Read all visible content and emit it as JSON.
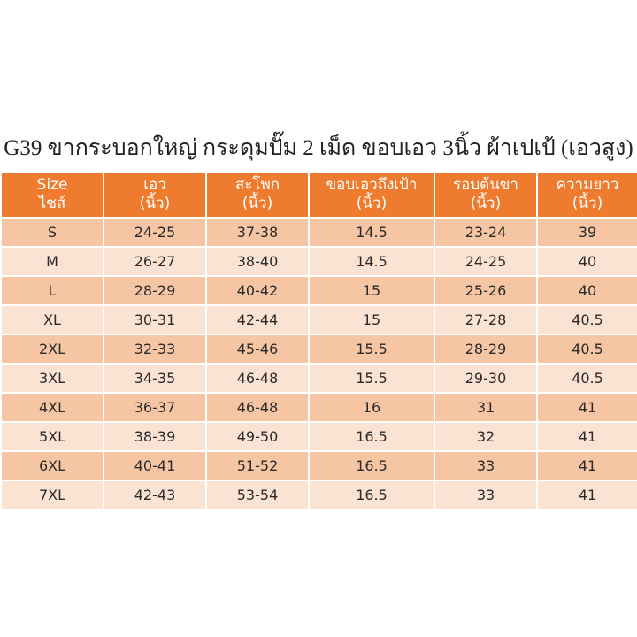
{
  "title": "G39 ขากระบอกใหญ่ กระดุมปั๊ม 2 เม็ด ขอบเอว 3นิ้ว ผ้าเปเป้ (เอวสูง)",
  "colors": {
    "header_bg": "#ef7c2e",
    "row_dark": "#f6c6a4",
    "row_light": "#fbe3d3"
  },
  "headers": [
    {
      "line1": "Size",
      "line2": "ไซส์"
    },
    {
      "line1": "เอว",
      "line2": "(นิ้ว)"
    },
    {
      "line1": "สะโพก",
      "line2": "(นิ้ว)"
    },
    {
      "line1": "ขอบเอวถึงเป้า",
      "line2": "(นิ้ว)"
    },
    {
      "line1": "รอบต้นขา",
      "line2": "(นิ้ว)"
    },
    {
      "line1": "ความยาว",
      "line2": "(นิ้ว)"
    }
  ],
  "rows": [
    [
      "S",
      "24-25",
      "37-38",
      "14.5",
      "23-24",
      "39"
    ],
    [
      "M",
      "26-27",
      "38-40",
      "14.5",
      "24-25",
      "40"
    ],
    [
      "L",
      "28-29",
      "40-42",
      "15",
      "25-26",
      "40"
    ],
    [
      "XL",
      "30-31",
      "42-44",
      "15",
      "27-28",
      "40.5"
    ],
    [
      "2XL",
      "32-33",
      "45-46",
      "15.5",
      "28-29",
      "40.5"
    ],
    [
      "3XL",
      "34-35",
      "46-48",
      "15.5",
      "29-30",
      "40.5"
    ],
    [
      "4XL",
      "36-37",
      "46-48",
      "16",
      "31",
      "41"
    ],
    [
      "5XL",
      "38-39",
      "49-50",
      "16.5",
      "32",
      "41"
    ],
    [
      "6XL",
      "40-41",
      "51-52",
      "16.5",
      "33",
      "41"
    ],
    [
      "7XL",
      "42-43",
      "53-54",
      "16.5",
      "33",
      "41"
    ]
  ]
}
